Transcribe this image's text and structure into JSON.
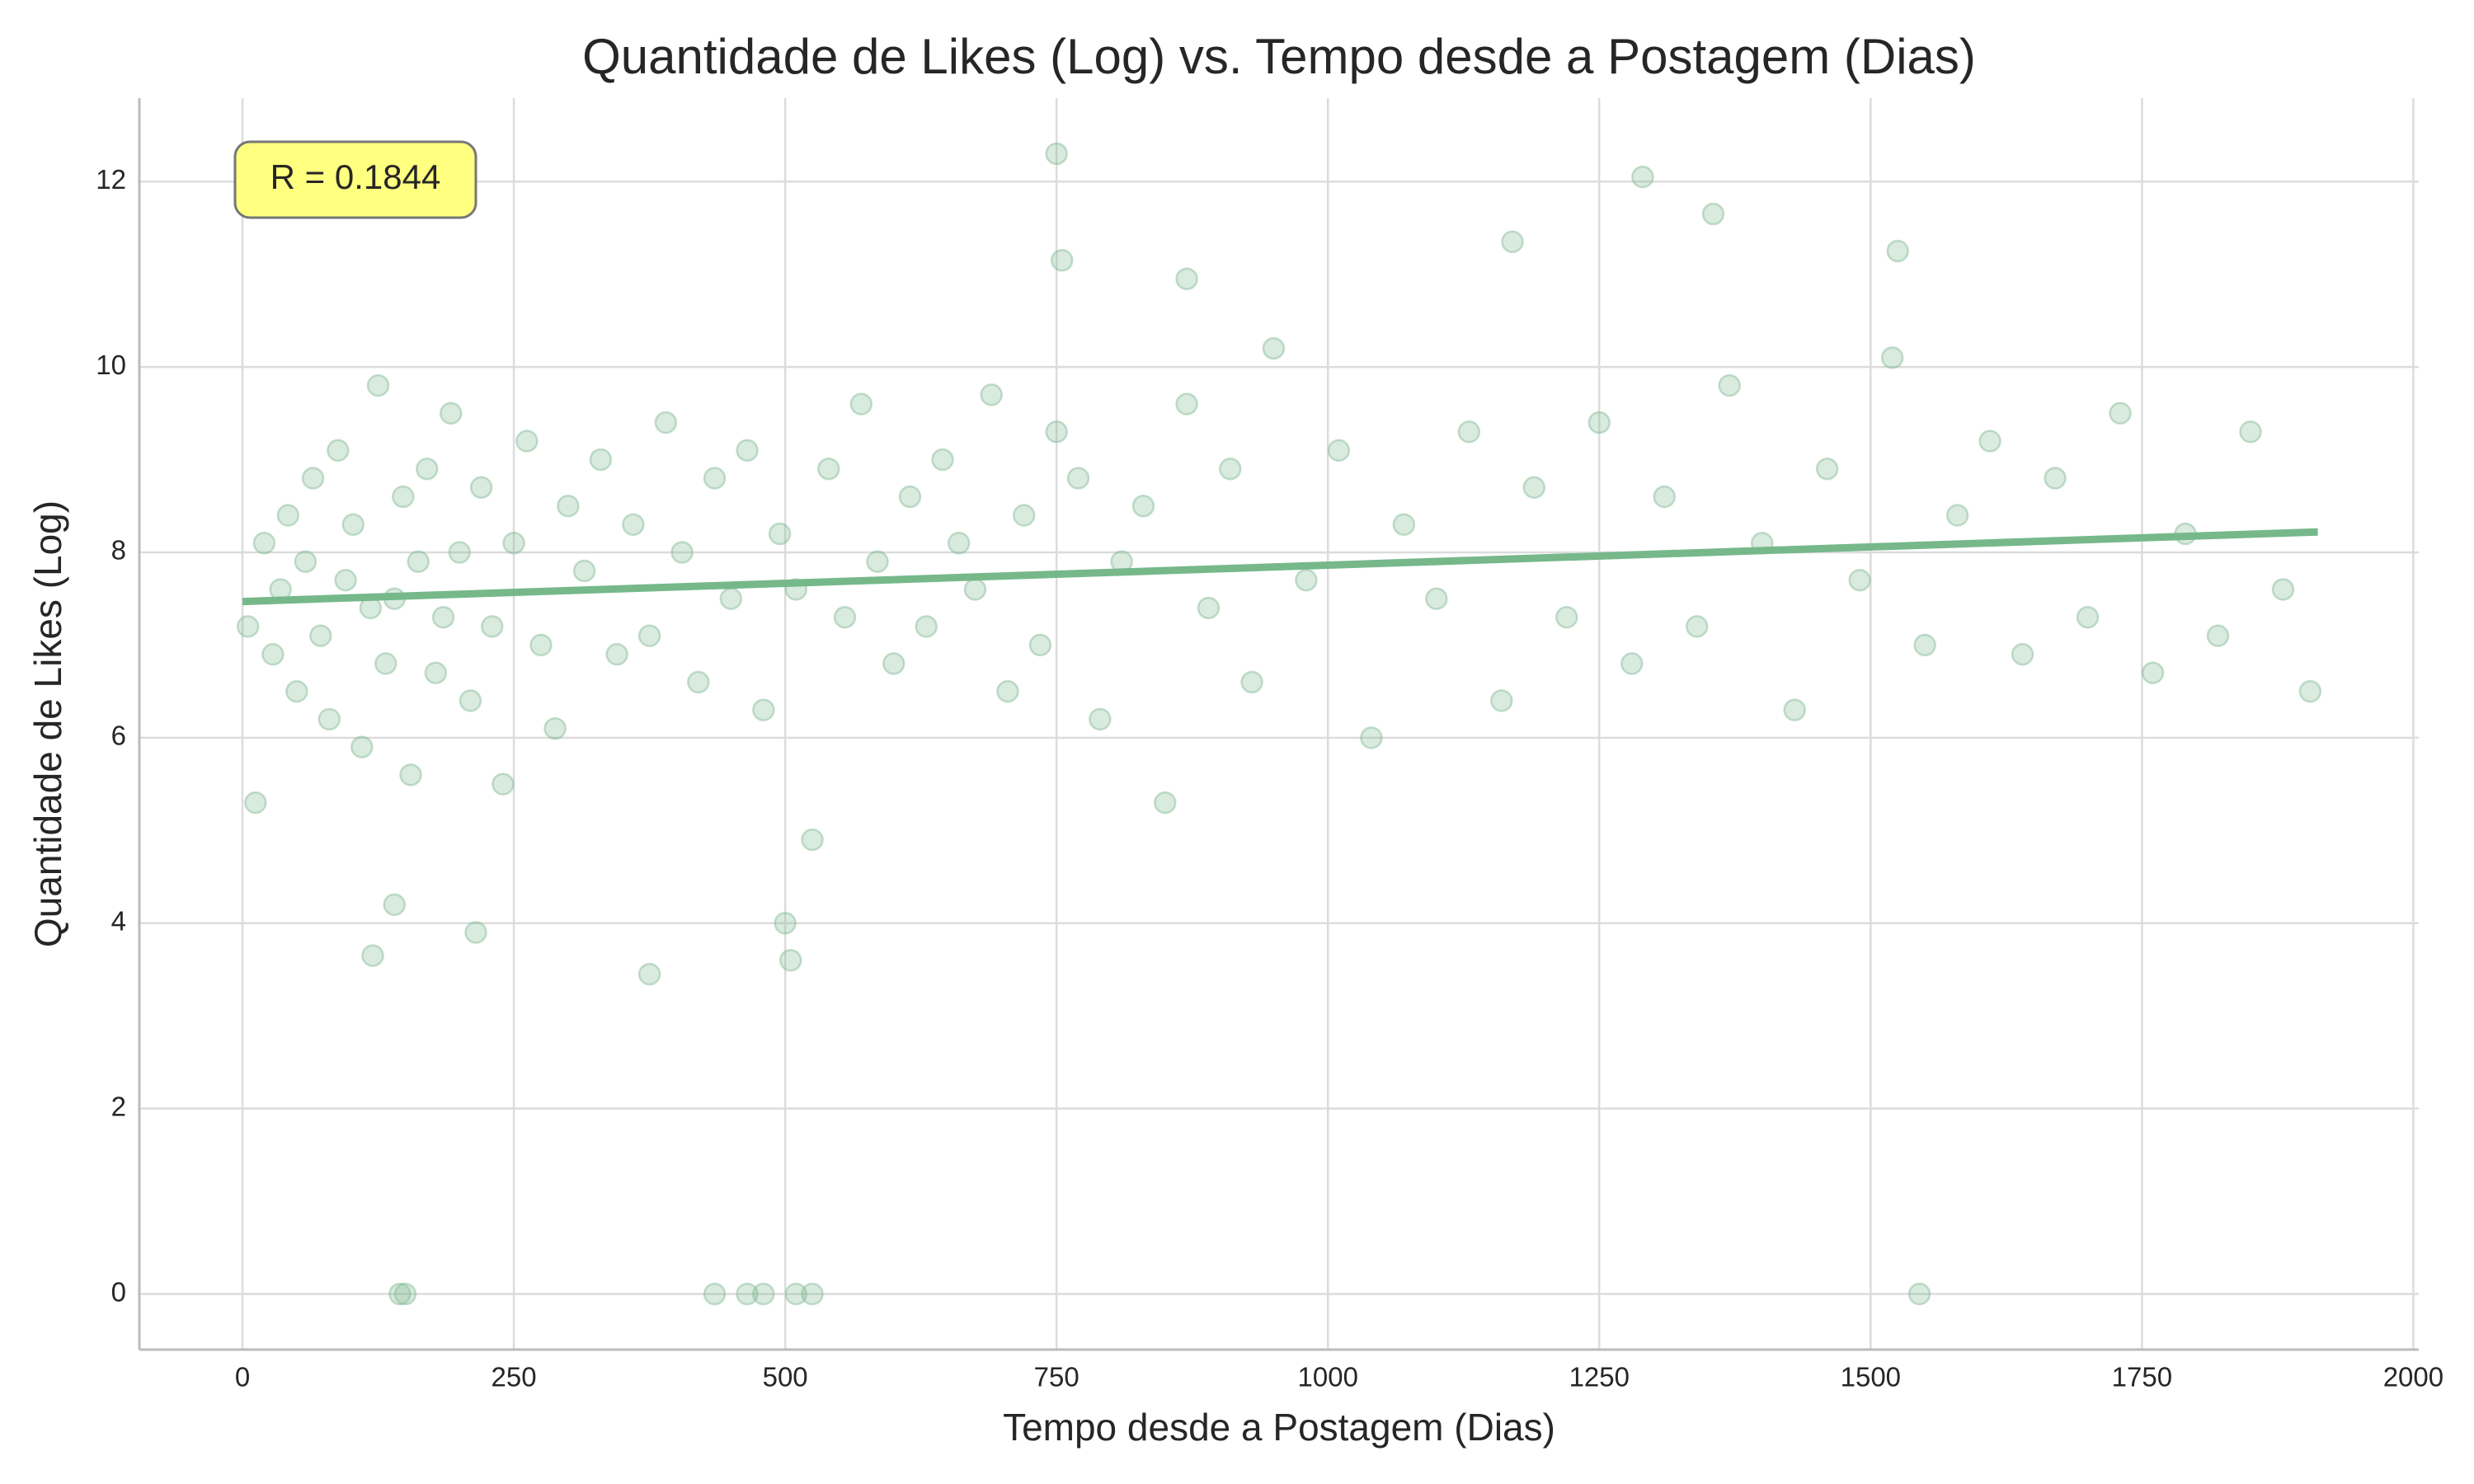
{
  "chart_data": {
    "type": "scatter",
    "title": "Quantidade de Likes (Log) vs. Tempo desde a Postagem (Dias)",
    "x_label": "Tempo desde a Postagem (Dias)",
    "y_label": "Quantidade de Likes (Log)",
    "annotation": "R = 0.1844",
    "color": "#80b992",
    "x": [
      5,
      12,
      20,
      28,
      35,
      42,
      50,
      58,
      65,
      72,
      80,
      88,
      95,
      102,
      110,
      118,
      125,
      132,
      140,
      148,
      155,
      162,
      170,
      178,
      185,
      192,
      200,
      210,
      220,
      230,
      240,
      250,
      262,
      275,
      288,
      300,
      315,
      330,
      345,
      360,
      375,
      390,
      405,
      420,
      435,
      450,
      465,
      480,
      495,
      510,
      525,
      540,
      555,
      570,
      585,
      600,
      615,
      630,
      645,
      660,
      675,
      690,
      705,
      720,
      735,
      750,
      770,
      790,
      810,
      830,
      850,
      870,
      890,
      910,
      930,
      950,
      980,
      1010,
      1040,
      1070,
      1100,
      1130,
      1160,
      1190,
      1220,
      1250,
      1280,
      1310,
      1340,
      1370,
      1400,
      1430,
      1460,
      1490,
      1520,
      1550,
      1580,
      1610,
      1640,
      1670,
      1700,
      1730,
      1760,
      1790,
      1820,
      1850,
      1880,
      1905,
      145,
      150,
      435,
      465,
      480,
      510,
      525,
      1545,
      750,
      1290,
      1170,
      1355,
      1525,
      755,
      120,
      375,
      505,
      500,
      215,
      140,
      870
    ],
    "values": [
      7.2,
      5.3,
      8.1,
      6.9,
      7.6,
      8.4,
      6.5,
      7.9,
      8.8,
      7.1,
      6.2,
      9.1,
      7.7,
      8.3,
      5.9,
      7.4,
      9.8,
      6.8,
      7.5,
      8.6,
      5.6,
      7.9,
      8.9,
      6.7,
      7.3,
      9.5,
      8.0,
      6.4,
      8.7,
      7.2,
      5.5,
      8.1,
      9.2,
      7.0,
      6.1,
      8.5,
      7.8,
      9.0,
      6.9,
      8.3,
      7.1,
      9.4,
      8.0,
      6.6,
      8.8,
      7.5,
      9.1,
      6.3,
      8.2,
      7.6,
      4.9,
      8.9,
      7.3,
      9.6,
      7.9,
      6.8,
      8.6,
      7.2,
      9.0,
      8.1,
      7.6,
      9.7,
      6.5,
      8.4,
      7.0,
      9.3,
      8.8,
      6.2,
      7.9,
      8.5,
      5.3,
      9.6,
      7.4,
      8.9,
      6.6,
      10.2,
      7.7,
      9.1,
      6.0,
      8.3,
      7.5,
      9.3,
      6.4,
      8.7,
      7.3,
      9.4,
      6.8,
      8.6,
      7.2,
      9.8,
      8.1,
      6.3,
      8.9,
      7.7,
      10.1,
      7.0,
      8.4,
      9.2,
      6.9,
      8.8,
      7.3,
      9.5,
      6.7,
      8.2,
      7.1,
      9.3,
      7.6,
      6.5,
      0,
      0,
      0,
      0,
      0,
      0,
      0,
      0,
      12.3,
      12.05,
      11.35,
      11.65,
      11.25,
      11.15,
      3.65,
      3.45,
      3.6,
      4.0,
      3.9,
      4.2,
      10.95
    ],
    "trend": {
      "x": [
        0,
        1912
      ],
      "values": [
        7.47,
        8.22
      ],
      "color": "#76b88a"
    },
    "xlim": [
      -95,
      2005
    ],
    "ylim": [
      -0.6,
      12.9
    ],
    "xticks": [
      0,
      250,
      500,
      750,
      1000,
      1250,
      1500,
      1750,
      2000
    ],
    "yticks": [
      0,
      2,
      4,
      6,
      8,
      10,
      12
    ],
    "grid": true
  }
}
